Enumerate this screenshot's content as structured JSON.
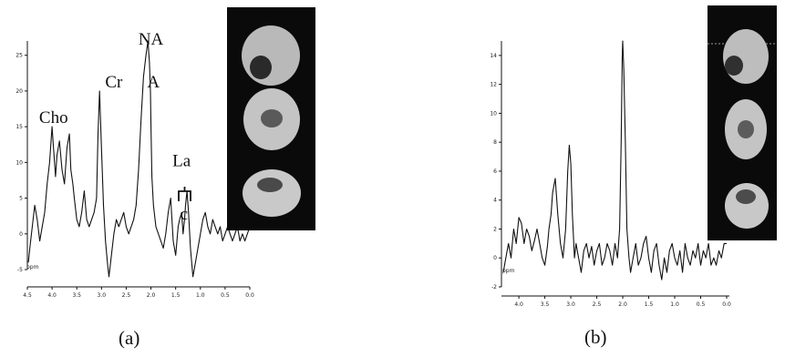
{
  "figure": {
    "caption_a": "(a)",
    "caption_b": "(b)"
  },
  "chart_data": [
    {
      "type": "line",
      "panel": "(a)",
      "xlabel": "",
      "ylabel": "",
      "xlim": [
        4.5,
        0.0
      ],
      "ylim": [
        -5,
        27
      ],
      "x_ticks": [
        "4.5",
        "4.0",
        "3.5",
        "3.0",
        "2.5",
        "2.0",
        "1.5",
        "1.0",
        "0.5",
        "0.0"
      ],
      "x_tick_values": [
        4.5,
        4.0,
        3.5,
        3.0,
        2.5,
        2.0,
        1.5,
        1.0,
        0.5,
        0.0
      ],
      "y_ticks": [
        "-5",
        "0",
        "5",
        "10",
        "15",
        "20",
        "25"
      ],
      "y_tick_values": [
        -5,
        0,
        5,
        10,
        15,
        20,
        25
      ],
      "peak_labels": [
        {
          "text": "Cho",
          "x": 3.97,
          "y": 15.5
        },
        {
          "text": "Cr",
          "x": 2.75,
          "y": 20.5
        },
        {
          "text": "NA",
          "x": 2.0,
          "y": 26.5
        },
        {
          "text": "A",
          "x": 1.95,
          "y": 20.5
        },
        {
          "text": "La",
          "x": 1.38,
          "y": 9.5
        },
        {
          "text": "c",
          "x": 1.33,
          "y": 2.0
        }
      ],
      "series": [
        {
          "x": [
            4.48,
            4.45,
            4.4,
            4.35,
            4.3,
            4.25,
            4.2,
            4.15,
            4.1,
            4.05,
            4.02,
            4.0,
            3.97,
            3.93,
            3.9,
            3.85,
            3.8,
            3.75,
            3.7,
            3.65,
            3.62,
            3.58,
            3.55,
            3.5,
            3.45,
            3.4,
            3.35,
            3.3,
            3.25,
            3.2,
            3.15,
            3.1,
            3.07,
            3.04,
            3.0,
            2.96,
            2.92,
            2.88,
            2.85,
            2.8,
            2.75,
            2.7,
            2.65,
            2.6,
            2.55,
            2.5,
            2.45,
            2.4,
            2.35,
            2.3,
            2.25,
            2.2,
            2.15,
            2.1,
            2.06,
            2.03,
            2.01,
            2.0,
            1.98,
            1.95,
            1.9,
            1.85,
            1.8,
            1.75,
            1.7,
            1.65,
            1.6,
            1.55,
            1.5,
            1.45,
            1.42,
            1.38,
            1.35,
            1.32,
            1.3,
            1.27,
            1.24,
            1.2,
            1.15,
            1.1,
            1.05,
            1.0,
            0.95,
            0.9,
            0.85,
            0.8,
            0.75,
            0.7,
            0.65,
            0.6,
            0.55,
            0.5,
            0.45,
            0.4,
            0.35,
            0.3,
            0.25,
            0.2,
            0.15,
            0.1,
            0.05,
            0.0
          ],
          "y": [
            -4,
            -2,
            1,
            4,
            2,
            -1,
            1,
            3,
            7,
            10,
            13,
            15,
            12,
            8,
            11,
            13,
            9,
            7,
            12,
            14,
            9,
            7,
            5,
            2,
            1,
            3,
            6,
            2,
            1,
            2,
            3,
            5,
            14,
            20,
            12,
            4,
            -1,
            -4,
            -6,
            -3,
            0,
            2,
            1,
            2,
            3,
            1,
            0,
            1,
            2,
            4,
            9,
            16,
            22,
            25,
            27,
            24,
            20,
            15,
            8,
            4,
            1,
            0,
            -1,
            -2,
            0,
            3,
            5,
            -1,
            -3,
            1,
            2,
            3,
            0,
            2,
            4,
            6,
            3,
            -2,
            -6,
            -4,
            -2,
            0,
            2,
            3,
            1,
            0,
            2,
            1,
            0,
            1,
            -1,
            0,
            1,
            0,
            -1,
            0,
            1,
            -1,
            0,
            -1,
            0,
            1
          ]
        }
      ]
    },
    {
      "type": "line",
      "panel": "(b)",
      "xlabel": "",
      "ylabel": "",
      "xlim": [
        4.3,
        0.0
      ],
      "ylim": [
        -2,
        15
      ],
      "x_ticks": [
        "4.0",
        "3.5",
        "3.0",
        "2.5",
        "2.0",
        "1.5",
        "1.0",
        "0.5",
        "0.0"
      ],
      "x_tick_values": [
        4.0,
        3.5,
        3.0,
        2.5,
        2.0,
        1.5,
        1.0,
        0.5,
        0.0
      ],
      "y_ticks": [
        "-2",
        "0",
        "2",
        "4",
        "6",
        "8",
        "10",
        "12",
        "14"
      ],
      "y_tick_values": [
        -2,
        0,
        2,
        4,
        6,
        8,
        10,
        12,
        14
      ],
      "series": [
        {
          "x": [
            4.3,
            4.25,
            4.2,
            4.15,
            4.1,
            4.05,
            4.0,
            3.95,
            3.9,
            3.85,
            3.8,
            3.75,
            3.7,
            3.65,
            3.6,
            3.55,
            3.5,
            3.45,
            3.42,
            3.38,
            3.35,
            3.3,
            3.25,
            3.2,
            3.15,
            3.1,
            3.06,
            3.03,
            3.0,
            2.97,
            2.93,
            2.9,
            2.85,
            2.8,
            2.75,
            2.7,
            2.65,
            2.6,
            2.55,
            2.5,
            2.45,
            2.4,
            2.35,
            2.3,
            2.25,
            2.2,
            2.15,
            2.1,
            2.06,
            2.03,
            2.01,
            2.0,
            1.98,
            1.95,
            1.92,
            1.88,
            1.85,
            1.8,
            1.75,
            1.7,
            1.65,
            1.6,
            1.55,
            1.5,
            1.45,
            1.4,
            1.35,
            1.3,
            1.25,
            1.2,
            1.15,
            1.1,
            1.05,
            1.0,
            0.95,
            0.9,
            0.85,
            0.8,
            0.75,
            0.7,
            0.65,
            0.6,
            0.55,
            0.5,
            0.45,
            0.4,
            0.35,
            0.3,
            0.25,
            0.2,
            0.15,
            0.1,
            0.05,
            0.0
          ],
          "y": [
            -1,
            0,
            1,
            0,
            2,
            1,
            2.8,
            2.4,
            1,
            2,
            1.5,
            0.5,
            1.2,
            2,
            1,
            0,
            -0.5,
            0.8,
            2,
            3,
            4.5,
            5.5,
            3,
            1,
            0,
            2,
            6,
            7.8,
            6.5,
            3,
            0,
            1,
            0,
            -1,
            0.5,
            1,
            0,
            0.8,
            -0.5,
            0.5,
            1,
            -0.5,
            0,
            1,
            0.5,
            -0.5,
            1,
            0,
            2,
            8,
            14,
            15,
            13,
            8,
            2,
            0,
            -1,
            0,
            1,
            -0.5,
            0,
            1,
            1.5,
            0,
            -1,
            0.5,
            1,
            -0.5,
            -1.5,
            0,
            -1,
            0.5,
            1,
            0,
            -0.5,
            0.5,
            -1,
            1,
            0,
            -0.5,
            0.5,
            0,
            1,
            -0.5,
            0.5,
            0,
            1,
            -0.5,
            0,
            -0.5,
            0.5,
            0,
            1,
            1
          ]
        }
      ]
    }
  ]
}
